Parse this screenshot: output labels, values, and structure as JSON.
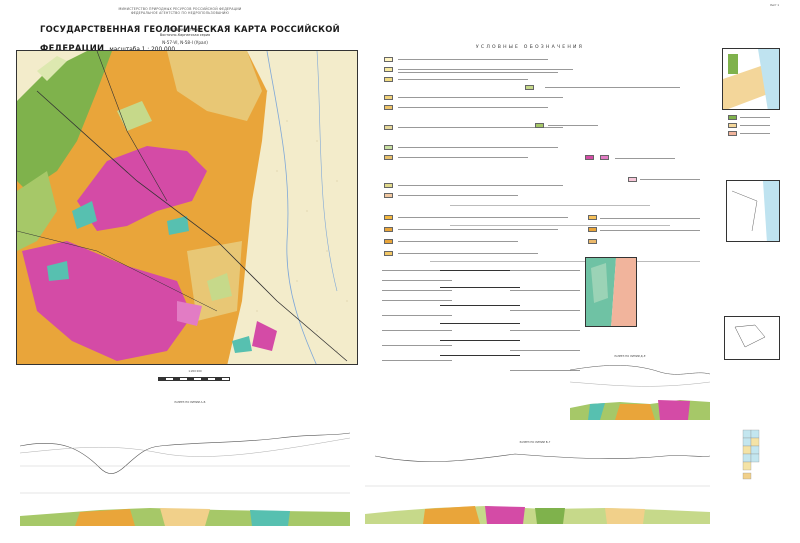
{
  "header": {
    "ministry_line1": "МИНИСТЕРСТВО ПРИРОДНЫХ РЕСУРСОВ РОССИЙСКОЙ ФЕДЕРАЦИИ",
    "ministry_line2": "ФЕДЕРАЛЬНОЕ АГЕНТСТВО ПО НЕДРОПОЛЬЗОВАНИЮ",
    "title": "ГОСУДАРСТВЕННАЯ ГЕОЛОГИЧЕСКАЯ КАРТА РОССИЙСКОЙ ФЕДЕРАЦИИ",
    "scale": "масштаба 1 : 200 000",
    "edition": "Издание второе",
    "series": "Восточно-Карпатская серия",
    "sheet": "N-57-VI, N-58-I (Урал)",
    "corner_note": "Лист 1"
  },
  "map": {
    "scale_label": "1:200 000"
  },
  "legend": {
    "heading": "УСЛОВНЫЕ ОБОЗНАЧЕНИЯ"
  },
  "sections": {
    "profile_left": "РАЗРЕЗ ПО ЛИНИИ А–Б",
    "profile_middle": "РАЗРЕЗ ПО ЛИНИИ В–Г",
    "profile_right": "РАЗРЕЗ ПО ЛИНИИ Д–Е"
  },
  "colors": {
    "map_base": "#f3eccb",
    "orange": "#e9a53a",
    "magenta": "#d44ba6",
    "green": "#7fb24c",
    "teal": "#57c0b0",
    "light_green": "#c6d98a"
  }
}
